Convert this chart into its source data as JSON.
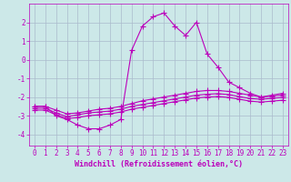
{
  "background_color": "#cce8e8",
  "grid_color": "#aabbcc",
  "line_color": "#bb00bb",
  "marker": "+",
  "markersize": 4,
  "linewidth": 0.8,
  "xlabel": "Windchill (Refroidissement éolien,°C)",
  "xlabel_fontsize": 6,
  "tick_fontsize": 5.5,
  "xlim": [
    -0.5,
    23.5
  ],
  "ylim": [
    -4.6,
    3.0
  ],
  "yticks": [
    -4,
    -3,
    -2,
    -1,
    0,
    1,
    2
  ],
  "xticks": [
    0,
    1,
    2,
    3,
    4,
    5,
    6,
    7,
    8,
    9,
    10,
    11,
    12,
    13,
    14,
    15,
    16,
    17,
    18,
    19,
    20,
    21,
    22,
    23
  ],
  "series": [
    {
      "x": [
        0,
        1,
        2,
        3,
        4,
        5,
        6,
        7,
        8,
        9,
        10,
        11,
        12,
        13,
        14,
        15,
        16,
        17,
        18,
        19,
        20,
        21,
        22,
        23
      ],
      "y": [
        -2.5,
        -2.5,
        -3.0,
        -3.2,
        -3.5,
        -3.7,
        -3.7,
        -3.5,
        -3.2,
        0.5,
        1.8,
        2.3,
        2.5,
        1.8,
        1.3,
        2.0,
        0.3,
        -0.4,
        -1.2,
        -1.5,
        -1.8,
        -2.0,
        -1.9,
        -1.8
      ]
    },
    {
      "x": [
        0,
        1,
        2,
        3,
        4,
        5,
        6,
        7,
        8,
        9,
        10,
        11,
        12,
        13,
        14,
        15,
        16,
        17,
        18,
        19,
        20,
        21,
        22,
        23
      ],
      "y": [
        -2.5,
        -2.5,
        -2.7,
        -2.9,
        -2.85,
        -2.75,
        -2.65,
        -2.6,
        -2.5,
        -2.35,
        -2.2,
        -2.1,
        -2.0,
        -1.9,
        -1.8,
        -1.7,
        -1.65,
        -1.65,
        -1.7,
        -1.8,
        -1.9,
        -2.0,
        -1.95,
        -1.9
      ]
    },
    {
      "x": [
        0,
        1,
        2,
        3,
        4,
        5,
        6,
        7,
        8,
        9,
        10,
        11,
        12,
        13,
        14,
        15,
        16,
        17,
        18,
        19,
        20,
        21,
        22,
        23
      ],
      "y": [
        -2.6,
        -2.6,
        -2.85,
        -3.05,
        -2.95,
        -2.85,
        -2.8,
        -2.75,
        -2.65,
        -2.5,
        -2.4,
        -2.3,
        -2.2,
        -2.1,
        -2.0,
        -1.9,
        -1.85,
        -1.82,
        -1.87,
        -1.98,
        -2.08,
        -2.12,
        -2.07,
        -2.02
      ]
    },
    {
      "x": [
        0,
        1,
        2,
        3,
        4,
        5,
        6,
        7,
        8,
        9,
        10,
        11,
        12,
        13,
        14,
        15,
        16,
        17,
        18,
        19,
        20,
        21,
        22,
        23
      ],
      "y": [
        -2.7,
        -2.7,
        -2.95,
        -3.15,
        -3.1,
        -3.0,
        -2.95,
        -2.9,
        -2.8,
        -2.65,
        -2.55,
        -2.45,
        -2.35,
        -2.25,
        -2.15,
        -2.05,
        -2.0,
        -1.97,
        -2.02,
        -2.12,
        -2.22,
        -2.27,
        -2.22,
        -2.17
      ]
    }
  ]
}
